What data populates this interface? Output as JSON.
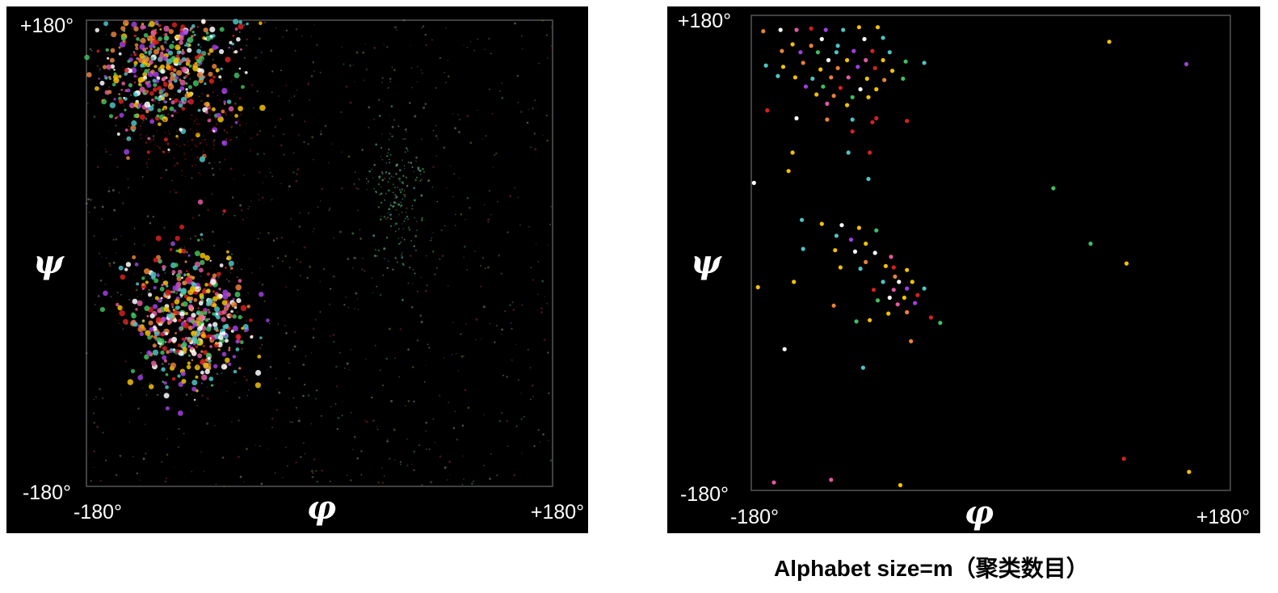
{
  "caption": "Alphabet size=m（聚类数目）",
  "chart_data": [
    {
      "type": "scatter",
      "title": "",
      "xlabel": "φ",
      "ylabel": "ψ",
      "xlim": [
        -180,
        180
      ],
      "ylim": [
        -180,
        180
      ],
      "x_tick_labels": [
        "-180°",
        "+180°"
      ],
      "y_tick_labels": [
        "+180°",
        "-180°"
      ],
      "background": "#000000",
      "density_regions": [
        {
          "name": "",
          "center": [
            -120,
            145
          ],
          "spread": [
            28,
            28
          ],
          "points": 520,
          "colors": [
            "#f2c200",
            "#4fc3c3",
            "#e8823a",
            "#a040e0",
            "#d82020",
            "#e05aa0",
            "#ffffff",
            "#3fbf5f"
          ]
        },
        {
          "name": "",
          "center": [
            -100,
            95
          ],
          "spread": [
            30,
            20
          ],
          "points": 200,
          "colors": [
            "#7a1010",
            "#9a2020",
            "#5a0c0c"
          ]
        },
        {
          "name": "",
          "center": [
            -100,
            -50
          ],
          "spread": [
            22,
            25
          ],
          "points": 520,
          "colors": [
            "#f2c200",
            "#4fc3c3",
            "#e8823a",
            "#a040e0",
            "#d82020",
            "#e05aa0",
            "#ffffff",
            "#3fbf5f"
          ]
        },
        {
          "name": "",
          "center": [
            60,
            40
          ],
          "spread": [
            12,
            28
          ],
          "points": 160,
          "colors": [
            "#3fbf5f",
            "#7fd8a0",
            "#4fc3c3"
          ]
        },
        {
          "name": "",
          "center": [
            0,
            0
          ],
          "spread": [
            180,
            180
          ],
          "points": 900,
          "colors": [
            "#8a8a8a",
            "#6f6f3a",
            "#3f6f6f",
            "#7a2a2a"
          ]
        }
      ]
    },
    {
      "type": "scatter",
      "title": "",
      "xlabel": "φ",
      "ylabel": "ψ",
      "xlim": [
        -180,
        180
      ],
      "ylim": [
        -180,
        180
      ],
      "x_tick_labels": [
        "-180°",
        "+180°"
      ],
      "y_tick_labels": [
        "+180°",
        "-180°"
      ],
      "background": "#000000",
      "points": [
        {
          "x": -171,
          "y": 168,
          "color": "#e8823a"
        },
        {
          "x": -158,
          "y": 169,
          "color": "#ffffff"
        },
        {
          "x": -146,
          "y": 169,
          "color": "#e05aa0"
        },
        {
          "x": -135,
          "y": 170,
          "color": "#d82020"
        },
        {
          "x": -124,
          "y": 169,
          "color": "#a040e0"
        },
        {
          "x": -111,
          "y": 169,
          "color": "#4fc3c3"
        },
        {
          "x": -99,
          "y": 171,
          "color": "#f2c200"
        },
        {
          "x": -85,
          "y": 171,
          "color": "#f2c200"
        },
        {
          "x": -127,
          "y": 162,
          "color": "#ffffff"
        },
        {
          "x": -95,
          "y": 162,
          "color": "#ffffff"
        },
        {
          "x": -81,
          "y": 163,
          "color": "#4fc3c3"
        },
        {
          "x": -149,
          "y": 158,
          "color": "#f2c200"
        },
        {
          "x": -135,
          "y": 157,
          "color": "#e8823a"
        },
        {
          "x": -115,
          "y": 157,
          "color": "#4fc3c3"
        },
        {
          "x": -157,
          "y": 153,
          "color": "#e8823a"
        },
        {
          "x": -143,
          "y": 152,
          "color": "#a040e0"
        },
        {
          "x": -130,
          "y": 152,
          "color": "#3fbf5f"
        },
        {
          "x": -116,
          "y": 152,
          "color": "#4fc3c3"
        },
        {
          "x": -103,
          "y": 153,
          "color": "#a040e0"
        },
        {
          "x": -89,
          "y": 153,
          "color": "#d82020"
        },
        {
          "x": -76,
          "y": 152,
          "color": "#4fc3c3"
        },
        {
          "x": -122,
          "y": 146,
          "color": "#ffffff"
        },
        {
          "x": -108,
          "y": 146,
          "color": "#f2c200"
        },
        {
          "x": -94,
          "y": 146,
          "color": "#e05aa0"
        },
        {
          "x": -81,
          "y": 146,
          "color": "#f2c200"
        },
        {
          "x": -64,
          "y": 145,
          "color": "#3fbf5f"
        },
        {
          "x": -50,
          "y": 144,
          "color": "#4fc3c3"
        },
        {
          "x": -141,
          "y": 144,
          "color": "#e8823a"
        },
        {
          "x": -169,
          "y": 142,
          "color": "#4fc3c3"
        },
        {
          "x": -156,
          "y": 141,
          "color": "#f2c200"
        },
        {
          "x": -128,
          "y": 139,
          "color": "#f2c200"
        },
        {
          "x": -115,
          "y": 140,
          "color": "#e8823a"
        },
        {
          "x": -100,
          "y": 141,
          "color": "#a040e0"
        },
        {
          "x": -87,
          "y": 140,
          "color": "#d82020"
        },
        {
          "x": -74,
          "y": 138,
          "color": "#f2c200"
        },
        {
          "x": -160,
          "y": 134,
          "color": "#4fc3c3"
        },
        {
          "x": -147,
          "y": 133,
          "color": "#f2c200"
        },
        {
          "x": -134,
          "y": 132,
          "color": "#4fc3c3"
        },
        {
          "x": -120,
          "y": 133,
          "color": "#e8823a"
        },
        {
          "x": -107,
          "y": 133,
          "color": "#e05aa0"
        },
        {
          "x": -93,
          "y": 132,
          "color": "#f2c200"
        },
        {
          "x": -80,
          "y": 131,
          "color": "#e8823a"
        },
        {
          "x": -66,
          "y": 132,
          "color": "#3fbf5f"
        },
        {
          "x": -139,
          "y": 126,
          "color": "#a040e0"
        },
        {
          "x": -126,
          "y": 126,
          "color": "#3fbf5f"
        },
        {
          "x": -113,
          "y": 125,
          "color": "#d82020"
        },
        {
          "x": -98,
          "y": 124,
          "color": "#ffffff"
        },
        {
          "x": -86,
          "y": 124,
          "color": "#f2c200"
        },
        {
          "x": -131,
          "y": 120,
          "color": "#f2c200"
        },
        {
          "x": -118,
          "y": 119,
          "color": "#e8823a"
        },
        {
          "x": -104,
          "y": 118,
          "color": "#3fbf5f"
        },
        {
          "x": -92,
          "y": 118,
          "color": "#f2c200"
        },
        {
          "x": -123,
          "y": 113,
          "color": "#e05aa0"
        },
        {
          "x": -108,
          "y": 112,
          "color": "#f2c200"
        },
        {
          "x": -168,
          "y": 108,
          "color": "#d82020"
        },
        {
          "x": -146,
          "y": 102,
          "color": "#ffffff"
        },
        {
          "x": -123,
          "y": 101,
          "color": "#e8823a"
        },
        {
          "x": -104,
          "y": 101,
          "color": "#4fc3c3"
        },
        {
          "x": -89,
          "y": 99,
          "color": "#d82020"
        },
        {
          "x": -63,
          "y": 100,
          "color": "#d82020"
        },
        {
          "x": -104,
          "y": 92,
          "color": "#d82020"
        },
        {
          "x": -149,
          "y": 76,
          "color": "#f2c200"
        },
        {
          "x": -107,
          "y": 76,
          "color": "#4fc3c3"
        },
        {
          "x": -91,
          "y": 76,
          "color": "#d82020"
        },
        {
          "x": -152,
          "y": 62,
          "color": "#f2c200"
        },
        {
          "x": -92,
          "y": 56,
          "color": "#4fc3c3"
        },
        {
          "x": -178,
          "y": 53,
          "color": "#ffffff"
        },
        {
          "x": 47,
          "y": 49,
          "color": "#3fbf5f"
        },
        {
          "x": -142,
          "y": 25,
          "color": "#4fc3c3"
        },
        {
          "x": -127,
          "y": 22,
          "color": "#f2c200"
        },
        {
          "x": -112,
          "y": 21,
          "color": "#ffffff"
        },
        {
          "x": -99,
          "y": 19,
          "color": "#f2c200"
        },
        {
          "x": -86,
          "y": 17,
          "color": "#3fbf5f"
        },
        {
          "x": -116,
          "y": 13,
          "color": "#4fc3c3"
        },
        {
          "x": -105,
          "y": 10,
          "color": "#a040e0"
        },
        {
          "x": -94,
          "y": 7,
          "color": "#f2c200"
        },
        {
          "x": 75,
          "y": 7,
          "color": "#3fbf5f"
        },
        {
          "x": -141,
          "y": 3,
          "color": "#4fc3c3"
        },
        {
          "x": -117,
          "y": 2,
          "color": "#f2c200"
        },
        {
          "x": -102,
          "y": 1,
          "color": "#ffffff"
        },
        {
          "x": -87,
          "y": 0,
          "color": "#ffffff"
        },
        {
          "x": -75,
          "y": -3,
          "color": "#e05aa0"
        },
        {
          "x": -94,
          "y": -7,
          "color": "#e8823a"
        },
        {
          "x": 102,
          "y": -8,
          "color": "#f2c200"
        },
        {
          "x": -79,
          "y": -10,
          "color": "#f2c200"
        },
        {
          "x": -113,
          "y": -11,
          "color": "#f2c200"
        },
        {
          "x": -98,
          "y": -12,
          "color": "#4fc3c3"
        },
        {
          "x": -73,
          "y": -11,
          "color": "#d82020"
        },
        {
          "x": -63,
          "y": -13,
          "color": "#f2c200"
        },
        {
          "x": -72,
          "y": -18,
          "color": "#e8823a"
        },
        {
          "x": -148,
          "y": -22,
          "color": "#f2c200"
        },
        {
          "x": -81,
          "y": -22,
          "color": "#4fc3c3"
        },
        {
          "x": -69,
          "y": -22,
          "color": "#ffffff"
        },
        {
          "x": -59,
          "y": -22,
          "color": "#f2c200"
        },
        {
          "x": -175,
          "y": -26,
          "color": "#f2c200"
        },
        {
          "x": -88,
          "y": -28,
          "color": "#d82020"
        },
        {
          "x": -73,
          "y": -28,
          "color": "#e05aa0"
        },
        {
          "x": -63,
          "y": -27,
          "color": "#a040e0"
        },
        {
          "x": -50,
          "y": -27,
          "color": "#4fc3c3"
        },
        {
          "x": -76,
          "y": -34,
          "color": "#ffffff"
        },
        {
          "x": -65,
          "y": -34,
          "color": "#f2c200"
        },
        {
          "x": -55,
          "y": -32,
          "color": "#d82020"
        },
        {
          "x": -85,
          "y": -36,
          "color": "#3fbf5f"
        },
        {
          "x": -118,
          "y": -40,
          "color": "#e8823a"
        },
        {
          "x": -70,
          "y": -39,
          "color": "#e05aa0"
        },
        {
          "x": -57,
          "y": -38,
          "color": "#a040e0"
        },
        {
          "x": -63,
          "y": -45,
          "color": "#e8823a"
        },
        {
          "x": -77,
          "y": -46,
          "color": "#f2c200"
        },
        {
          "x": -45,
          "y": -49,
          "color": "#d82020"
        },
        {
          "x": -91,
          "y": -51,
          "color": "#f2c200"
        },
        {
          "x": -101,
          "y": -52,
          "color": "#3fbf5f"
        },
        {
          "x": -38,
          "y": -53,
          "color": "#3fbf5f"
        },
        {
          "x": -60,
          "y": -67,
          "color": "#e8823a"
        },
        {
          "x": -155,
          "y": -73,
          "color": "#ffffff"
        },
        {
          "x": -96,
          "y": -87,
          "color": "#4fc3c3"
        },
        {
          "x": 100,
          "y": -156,
          "color": "#d82020"
        },
        {
          "x": 149,
          "y": -166,
          "color": "#f2c200"
        },
        {
          "x": -163,
          "y": -174,
          "color": "#e05aa0"
        },
        {
          "x": -120,
          "y": -172,
          "color": "#e05aa0"
        },
        {
          "x": -68,
          "y": -176,
          "color": "#f2c200"
        },
        {
          "x": -86,
          "y": 102,
          "color": "#d82020"
        },
        {
          "x": 147,
          "y": 143,
          "color": "#a040e0"
        },
        {
          "x": 89,
          "y": 160,
          "color": "#f2c200"
        }
      ]
    }
  ]
}
